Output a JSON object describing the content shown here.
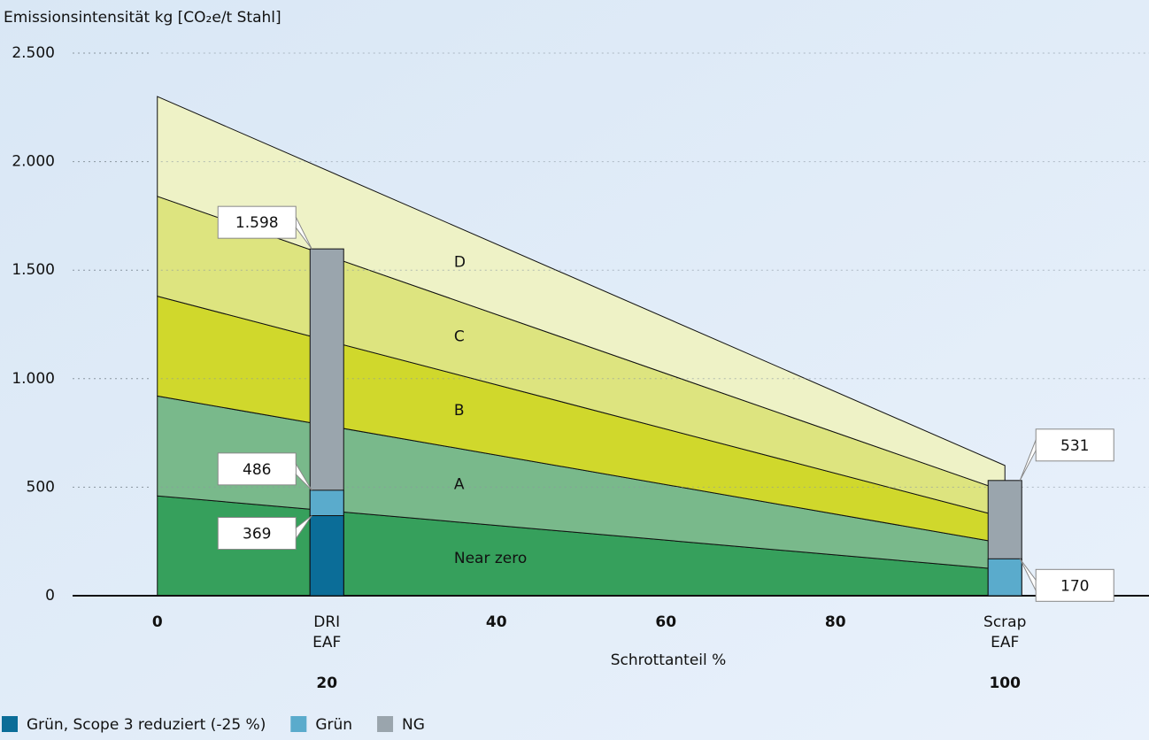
{
  "chart_data": {
    "type": "bar",
    "y_label": "Emissionsintensität kg [CO₂e/t Stahl]",
    "x_label": "Schrottanteil %",
    "xlim": [
      -10,
      117
    ],
    "ylim": [
      0,
      2500
    ],
    "xticks": [
      0,
      20,
      40,
      60,
      80,
      100
    ],
    "yticks": [
      0,
      500,
      {
        "value": 1000,
        "label": "1.000"
      },
      {
        "value": 1500,
        "label": "1.500"
      },
      {
        "value": 2000,
        "label": "2.000"
      },
      {
        "value": 2500,
        "label": "2.500"
      }
    ],
    "grid": true,
    "bands": {
      "x": [
        0,
        100
      ],
      "items": [
        {
          "name": "Near zero",
          "color": "#36a05c",
          "values": [
            460,
            120
          ]
        },
        {
          "name": "A",
          "color": "#79b98b",
          "values": [
            460,
            120
          ]
        },
        {
          "name": "B",
          "color": "#d0d82c",
          "values": [
            460,
            120
          ]
        },
        {
          "name": "C",
          "color": "#dde47f",
          "values": [
            460,
            120
          ]
        },
        {
          "name": "D",
          "color": "#eef2c6",
          "values": [
            460,
            120
          ]
        }
      ]
    },
    "x": [
      20,
      100
    ],
    "category_labels": [
      [
        "DRI",
        "EAF"
      ],
      [
        "Scrap",
        "EAF"
      ]
    ],
    "series": [
      {
        "name": "NG",
        "color": "#9aa5ad",
        "values": [
          1598,
          531
        ],
        "value_labels": [
          "1.598",
          "531"
        ]
      },
      {
        "name": "Grün",
        "color": "#5aabcc",
        "values": [
          486,
          170
        ],
        "value_labels": [
          "486",
          "170"
        ]
      },
      {
        "name": "Grün, Scope 3 reduziert (-25 %)",
        "color": "#0b6d98",
        "values": [
          369,
          null
        ],
        "value_labels": [
          "369",
          null
        ]
      }
    ]
  }
}
